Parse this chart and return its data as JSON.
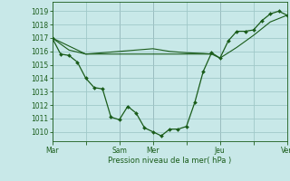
{
  "bg_color": "#c8e8e8",
  "grid_color": "#a0c8c8",
  "line_color": "#1a5c1a",
  "xlabel": "Pression niveau de la mer( hPa )",
  "ylim": [
    1009.3,
    1019.7
  ],
  "yticks": [
    1010,
    1011,
    1012,
    1013,
    1014,
    1015,
    1016,
    1017,
    1018,
    1019
  ],
  "xlim": [
    0,
    84
  ],
  "xtick_labels": [
    "Mar",
    "",
    "Sam",
    "Mer",
    "",
    "Jeu",
    "",
    "Ven"
  ],
  "xtick_positions": [
    0,
    12,
    24,
    36,
    48,
    60,
    72,
    84
  ],
  "vline_positions": [
    0,
    24,
    36,
    60,
    84
  ],
  "line1_x": [
    0,
    3,
    6,
    9,
    12,
    15,
    18,
    21,
    24,
    27,
    30,
    33,
    36,
    39,
    42,
    45,
    48,
    51,
    54,
    57,
    60,
    63,
    66,
    69,
    72,
    75,
    78,
    81,
    84
  ],
  "line1_y": [
    1017.0,
    1015.8,
    1015.7,
    1015.2,
    1014.0,
    1013.3,
    1013.2,
    1011.1,
    1010.9,
    1011.9,
    1011.4,
    1010.3,
    1010.0,
    1009.7,
    1010.2,
    1010.2,
    1010.4,
    1012.2,
    1014.5,
    1015.9,
    1015.5,
    1016.8,
    1017.5,
    1017.5,
    1017.6,
    1018.3,
    1018.8,
    1019.0,
    1018.7
  ],
  "line2_x": [
    0,
    12,
    24,
    36,
    48,
    57,
    60,
    66,
    72,
    78,
    84
  ],
  "line2_y": [
    1017.0,
    1015.8,
    1015.8,
    1015.8,
    1015.8,
    1015.8,
    1015.5,
    1016.3,
    1017.2,
    1018.2,
    1018.7
  ],
  "line3_x": [
    0,
    6,
    12,
    18,
    24,
    30,
    36,
    42,
    48,
    54,
    57
  ],
  "line3_y": [
    1017.0,
    1016.1,
    1015.8,
    1015.9,
    1016.0,
    1016.1,
    1016.2,
    1016.0,
    1015.9,
    1015.85,
    1015.8
  ]
}
